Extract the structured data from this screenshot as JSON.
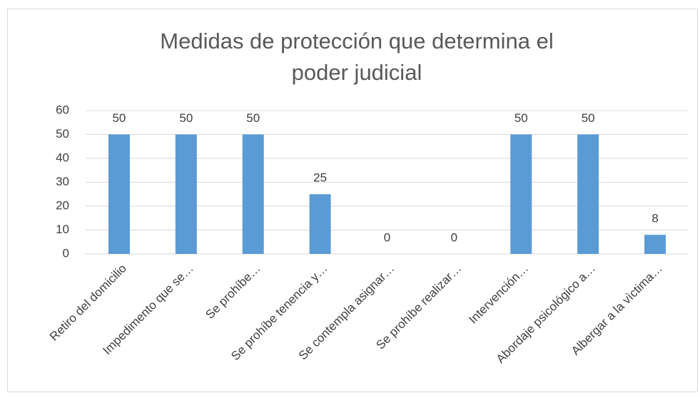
{
  "chart_data": {
    "type": "bar",
    "title": "Medidas de protección que determina el poder judicial",
    "categories": [
      "Retiro del domicilio",
      "Impedimento que se…",
      "Se prohíbe…",
      "Se prohíbe tenencia y…",
      "Se contempla asignar…",
      "Se prohíbe realizar…",
      "Intervención…",
      "Abordaje psicológico a…",
      "Albergar a la vìctima…"
    ],
    "values": [
      50,
      50,
      50,
      25,
      0,
      0,
      50,
      50,
      8
    ],
    "color": "#5b9bd5",
    "ylim": [
      0,
      60
    ],
    "yticks": [
      0,
      10,
      20,
      30,
      40,
      50,
      60
    ],
    "grid": true
  }
}
